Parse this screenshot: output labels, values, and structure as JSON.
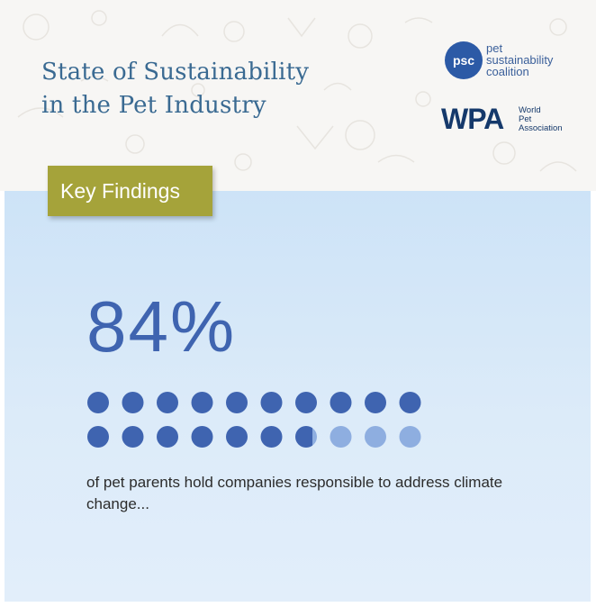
{
  "header": {
    "title_line1": "State of Sustainability",
    "title_line2": "in the Pet Industry"
  },
  "logos": {
    "psc": {
      "mark": "psc",
      "line1": "pet",
      "line2": "sustainability",
      "line3": "coalition"
    },
    "wpa": {
      "mark": "WPA",
      "line1": "World",
      "line2": "Pet",
      "line3": "Association"
    }
  },
  "badge": {
    "label": "Key Findings"
  },
  "stat": {
    "value_text": "84%",
    "percent": 84,
    "dot_total": 20,
    "caption": "of pet parents hold companies responsible to address climate change..."
  },
  "colors": {
    "accent_blue": "#3f64b0",
    "light_dot": "#8eaee0",
    "badge_olive": "#a5a33a",
    "title_blue": "#3a6a92"
  }
}
